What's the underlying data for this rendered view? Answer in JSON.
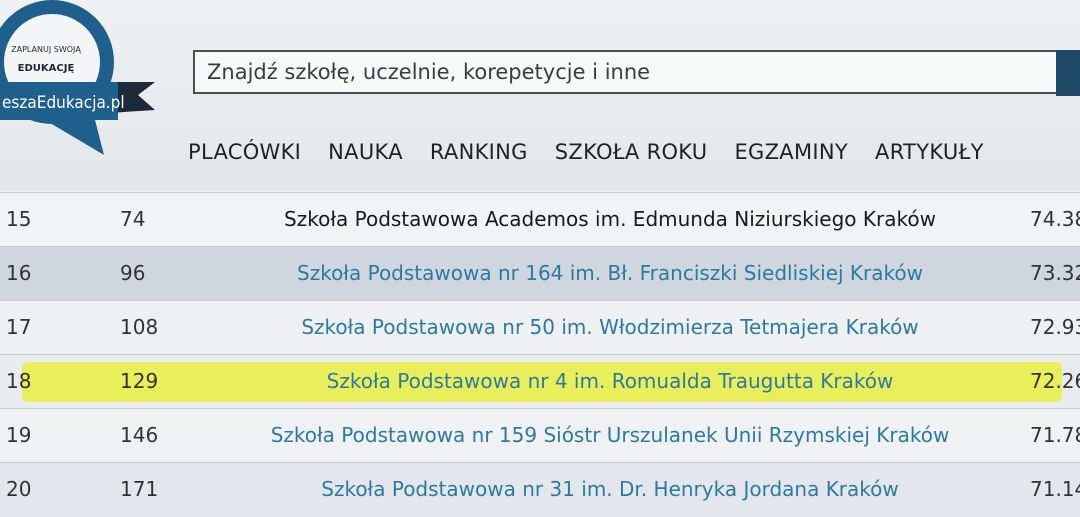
{
  "logo": {
    "line1": "ZAPLANUJ SWOJĄ",
    "line2": "EDUKACJĘ",
    "site": "eszaEdukacja.pl"
  },
  "search": {
    "placeholder": "Znajdź szkołę, uczelnie, korepetycje i inne"
  },
  "nav": [
    "PLACÓWKI",
    "NAUKA",
    "RANKING",
    "SZKOŁA ROKU",
    "EGZAMINY",
    "ARTYKUŁY"
  ],
  "table": {
    "rows": [
      [
        "15",
        "74",
        "Szkoła Podstawowa Academos im. Edmunda Niziurskiego Kraków",
        "74.38"
      ],
      [
        "16",
        "96",
        "Szkoła Podstawowa nr 164 im. Bł. Franciszki Siedliskiej Kraków",
        "73.32"
      ],
      [
        "17",
        "108",
        "Szkoła Podstawowa nr 50 im. Włodzimierza Tetmajera Kraków",
        "72.93"
      ],
      [
        "18",
        "129",
        "Szkoła Podstawowa nr 4 im. Romualda Traugutta Kraków",
        "72.26"
      ],
      [
        "19",
        "146",
        "Szkoła Podstawowa nr 159 Sióstr Urszulanek Unii Rzymskiej Kraków",
        "71.78"
      ],
      [
        "20",
        "171",
        "Szkoła Podstawowa nr 31 im. Dr. Henryka Jordana Kraków",
        "71.14"
      ]
    ]
  }
}
